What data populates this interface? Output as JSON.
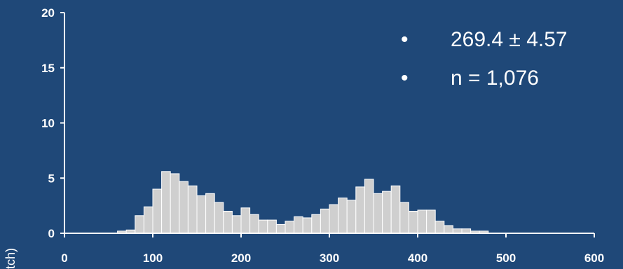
{
  "chart_data": {
    "type": "bar",
    "title": "",
    "xlabel": "",
    "ylabel": "tch)",
    "xlim": [
      0,
      600
    ],
    "ylim": [
      0,
      20
    ],
    "x_ticks": [
      "0",
      "100",
      "200",
      "300",
      "400",
      "500",
      "600"
    ],
    "y_ticks": [
      "0",
      "5",
      "10",
      "15",
      "20"
    ],
    "bin_width": 10,
    "bin_starts": [
      60,
      70,
      80,
      90,
      100,
      110,
      120,
      130,
      140,
      150,
      160,
      170,
      180,
      190,
      200,
      210,
      220,
      230,
      240,
      250,
      260,
      270,
      280,
      290,
      300,
      310,
      320,
      330,
      340,
      350,
      360,
      370,
      380,
      390,
      400,
      410,
      420,
      430,
      440,
      450,
      460,
      470
    ],
    "values": [
      0.2,
      0.3,
      1.6,
      2.4,
      4.0,
      5.6,
      5.4,
      4.7,
      4.3,
      3.4,
      3.6,
      2.8,
      2.0,
      1.6,
      2.3,
      1.7,
      1.2,
      1.2,
      0.8,
      1.1,
      1.5,
      1.4,
      1.7,
      2.2,
      2.6,
      3.2,
      3.0,
      4.2,
      4.9,
      3.6,
      3.8,
      4.3,
      2.8,
      2.0,
      2.1,
      2.1,
      1.1,
      0.7,
      0.4,
      0.4,
      0.2,
      0.2
    ],
    "annotations": [
      "269.4 ± 4.57",
      "n = 1,076"
    ],
    "bar_color": "#cfcfcf",
    "bar_edge_color": "#ffffff",
    "axis_color": "#ffffff",
    "background": "#1f4878",
    "grid": false
  }
}
